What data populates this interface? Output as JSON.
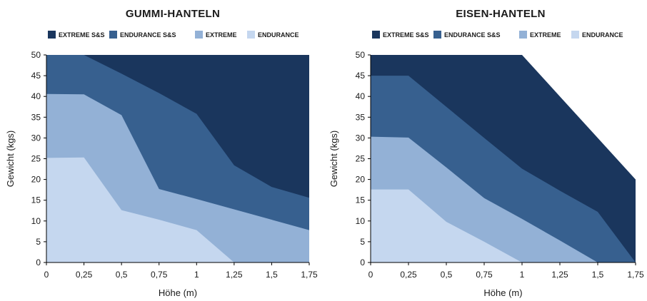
{
  "chart_data": [
    {
      "type": "area",
      "title": "GUMMI-HANTELN",
      "xlabel": "Höhe (m)",
      "ylabel": "Gewicht (kgs)",
      "xlim": [
        0,
        1.75
      ],
      "ylim": [
        0,
        50
      ],
      "x_ticks": [
        "0",
        "0,25",
        "0,5",
        "0,75",
        "1",
        "1,25",
        "1,5",
        "1,75"
      ],
      "y_ticks": [
        "0",
        "5",
        "10",
        "15",
        "20",
        "25",
        "30",
        "35",
        "40",
        "45",
        "50"
      ],
      "legend_position": "top",
      "series": [
        {
          "name": "EXTREME S&S",
          "color": "#1a365d",
          "points": [
            [
              0,
              50
            ],
            [
              1.75,
              50
            ]
          ]
        },
        {
          "name": "ENDURANCE S&S",
          "color": "#37608f",
          "points": [
            [
              0,
              50
            ],
            [
              0.25,
              50
            ],
            [
              0.5,
              45.5
            ],
            [
              0.75,
              40.8
            ],
            [
              1,
              35.8
            ],
            [
              1.25,
              23.4
            ],
            [
              1.5,
              18.2
            ],
            [
              1.75,
              15.6
            ]
          ]
        },
        {
          "name": "EXTREME",
          "color": "#93b1d6",
          "points": [
            [
              0,
              40.6
            ],
            [
              0.25,
              40.5
            ],
            [
              0.5,
              35.5
            ],
            [
              0.75,
              17.7
            ],
            [
              1,
              15.3
            ],
            [
              1.25,
              12.8
            ],
            [
              1.5,
              10.3
            ],
            [
              1.75,
              7.8
            ]
          ]
        },
        {
          "name": "ENDURANCE",
          "color": "#c5d7ef",
          "points": [
            [
              0,
              25.2
            ],
            [
              0.25,
              25.3
            ],
            [
              0.5,
              12.6
            ],
            [
              0.75,
              10.3
            ],
            [
              1,
              7.8
            ],
            [
              1.25,
              0
            ]
          ]
        }
      ]
    },
    {
      "type": "area",
      "title": "EISEN-HANTELN",
      "xlabel": "Höhe (m)",
      "ylabel": "Gewicht (kgs)",
      "xlim": [
        0,
        1.75
      ],
      "ylim": [
        0,
        50
      ],
      "x_ticks": [
        "0",
        "0,25",
        "0,5",
        "0,75",
        "1",
        "1,25",
        "1,5",
        "1,75"
      ],
      "y_ticks": [
        "0",
        "5",
        "10",
        "15",
        "20",
        "25",
        "30",
        "35",
        "40",
        "45",
        "50"
      ],
      "legend_position": "top",
      "series": [
        {
          "name": "EXTREME S&S",
          "color": "#1a365d",
          "points": [
            [
              0,
              50
            ],
            [
              1,
              50
            ],
            [
              1.25,
              40
            ],
            [
              1.5,
              30
            ],
            [
              1.75,
              20
            ]
          ]
        },
        {
          "name": "ENDURANCE S&S",
          "color": "#37608f",
          "points": [
            [
              0,
              45
            ],
            [
              0.25,
              45
            ],
            [
              0.5,
              37.5
            ],
            [
              0.75,
              30
            ],
            [
              1,
              22.6
            ],
            [
              1.25,
              17.3
            ],
            [
              1.5,
              12.2
            ],
            [
              1.75,
              0
            ]
          ]
        },
        {
          "name": "EXTREME",
          "color": "#93b1d6",
          "points": [
            [
              0,
              30.3
            ],
            [
              0.25,
              30.1
            ],
            [
              0.5,
              22.9
            ],
            [
              0.75,
              15.5
            ],
            [
              1,
              10.5
            ],
            [
              1.25,
              5.3
            ],
            [
              1.5,
              0
            ]
          ]
        },
        {
          "name": "ENDURANCE",
          "color": "#c5d7ef",
          "points": [
            [
              0,
              17.6
            ],
            [
              0.25,
              17.6
            ],
            [
              0.5,
              9.8
            ],
            [
              0.75,
              5
            ],
            [
              1,
              0
            ]
          ]
        }
      ]
    }
  ]
}
